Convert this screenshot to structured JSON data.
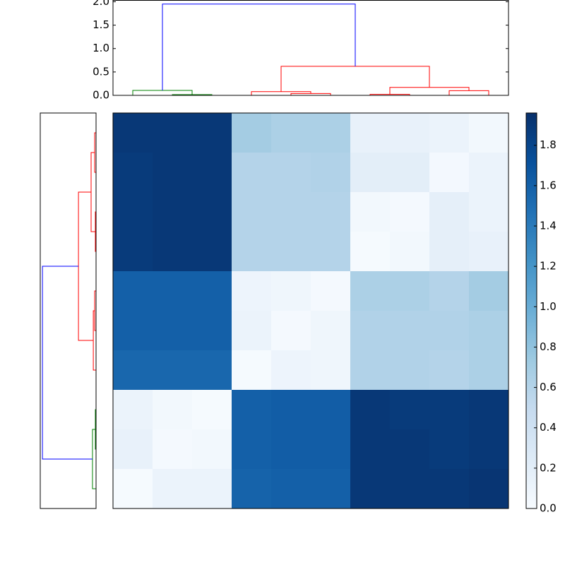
{
  "chart_data": [
    {
      "type": "dendrogram",
      "orientation": "top",
      "xlim": [
        0,
        100
      ],
      "ylim": [
        0,
        2.03
      ],
      "yticks": [
        {
          "value": 0,
          "label": "0.0"
        },
        {
          "value": 0.5,
          "label": "0.5"
        },
        {
          "value": 1,
          "label": "1.0"
        },
        {
          "value": 1.5,
          "label": "1.5"
        },
        {
          "value": 2,
          "label": "2.0"
        }
      ],
      "links": [
        {
          "icoord": [
            15,
            15,
            25,
            25
          ],
          "dcoord": [
            0,
            0.015,
            0.015,
            0
          ],
          "color": "#008000"
        },
        {
          "icoord": [
            5,
            5,
            20,
            20
          ],
          "dcoord": [
            0,
            0.106,
            0.106,
            0.015
          ],
          "color": "#008000"
        },
        {
          "icoord": [
            45,
            45,
            55,
            55
          ],
          "dcoord": [
            0,
            0.04,
            0.04,
            0
          ],
          "color": "#ff0000"
        },
        {
          "icoord": [
            35,
            35,
            50,
            50
          ],
          "dcoord": [
            0,
            0.08,
            0.08,
            0.04
          ],
          "color": "#ff0000"
        },
        {
          "icoord": [
            65,
            65,
            75,
            75
          ],
          "dcoord": [
            0,
            0.02,
            0.02,
            0
          ],
          "color": "#ff0000"
        },
        {
          "icoord": [
            85,
            85,
            95,
            95
          ],
          "dcoord": [
            0,
            0.1,
            0.1,
            0
          ],
          "color": "#ff0000"
        },
        {
          "icoord": [
            70,
            70,
            90,
            90
          ],
          "dcoord": [
            0.02,
            0.17,
            0.17,
            0.1
          ],
          "color": "#ff0000"
        },
        {
          "icoord": [
            42.5,
            42.5,
            80,
            80
          ],
          "dcoord": [
            0.08,
            0.62,
            0.62,
            0.17
          ],
          "color": "#ff0000"
        },
        {
          "icoord": [
            12.5,
            12.5,
            61.25,
            61.25
          ],
          "dcoord": [
            0.106,
            1.95,
            1.95,
            0.62
          ],
          "color": "#0000ff"
        }
      ]
    },
    {
      "type": "dendrogram",
      "orientation": "left",
      "xlim": [
        0,
        2.03
      ],
      "ylim": [
        0,
        100
      ],
      "links": [
        {
          "icoord": [
            15,
            15,
            25,
            25
          ],
          "dcoord": [
            0,
            0.026,
            0.026,
            0
          ],
          "color": "#008000"
        },
        {
          "icoord": [
            5,
            5,
            20,
            20
          ],
          "dcoord": [
            0,
            0.13,
            0.13,
            0.026
          ],
          "color": "#008000"
        },
        {
          "icoord": [
            45,
            45,
            55,
            55
          ],
          "dcoord": [
            0,
            0.05,
            0.05,
            0
          ],
          "color": "#ff0000"
        },
        {
          "icoord": [
            35,
            35,
            50,
            50
          ],
          "dcoord": [
            0,
            0.1,
            0.1,
            0.05
          ],
          "color": "#ff0000"
        },
        {
          "icoord": [
            65,
            65,
            75,
            75
          ],
          "dcoord": [
            0,
            0.026,
            0.026,
            0
          ],
          "color": "#ff0000"
        },
        {
          "icoord": [
            85,
            85,
            95,
            95
          ],
          "dcoord": [
            0,
            0.05,
            0.05,
            0
          ],
          "color": "#ff0000"
        },
        {
          "icoord": [
            70,
            70,
            90,
            90
          ],
          "dcoord": [
            0.026,
            0.18,
            0.18,
            0.05
          ],
          "color": "#ff0000"
        },
        {
          "icoord": [
            42.5,
            42.5,
            80,
            80
          ],
          "dcoord": [
            0.1,
            0.64,
            0.64,
            0.18
          ],
          "color": "#ff0000"
        },
        {
          "icoord": [
            12.5,
            12.5,
            61.25,
            61.25
          ],
          "dcoord": [
            0.13,
            1.95,
            1.95,
            0.64
          ],
          "color": "#0000ff"
        }
      ]
    },
    {
      "type": "heatmap",
      "colormap": "Blues",
      "clim": [
        0,
        1.96
      ],
      "colorbar_ticks": [
        {
          "value": 0,
          "label": "0.0"
        },
        {
          "value": 0.2,
          "label": "0.2"
        },
        {
          "value": 0.4,
          "label": "0.4"
        },
        {
          "value": 0.6,
          "label": "0.6"
        },
        {
          "value": 0.8,
          "label": "0.8"
        },
        {
          "value": 1,
          "label": "1.0"
        },
        {
          "value": 1.2,
          "label": "1.2"
        },
        {
          "value": 1.4,
          "label": "1.4"
        },
        {
          "value": 1.6,
          "label": "1.6"
        },
        {
          "value": 1.8,
          "label": "1.8"
        }
      ],
      "z": [
        [
          1.9,
          1.9,
          1.9,
          0.7,
          0.65,
          0.65,
          0.15,
          0.15,
          0.12,
          0.05
        ],
        [
          1.88,
          1.9,
          1.9,
          0.6,
          0.6,
          0.62,
          0.2,
          0.2,
          0.04,
          0.12
        ],
        [
          1.88,
          1.9,
          1.9,
          0.6,
          0.6,
          0.6,
          0.05,
          0.03,
          0.18,
          0.12
        ],
        [
          1.88,
          1.9,
          1.9,
          0.6,
          0.6,
          0.6,
          0.02,
          0.05,
          0.18,
          0.15
        ],
        [
          1.6,
          1.6,
          1.6,
          0.1,
          0.08,
          0.03,
          0.65,
          0.65,
          0.6,
          0.7
        ],
        [
          1.6,
          1.6,
          1.6,
          0.12,
          0.03,
          0.08,
          0.62,
          0.62,
          0.62,
          0.65
        ],
        [
          1.55,
          1.55,
          1.55,
          0.02,
          0.1,
          0.08,
          0.62,
          0.62,
          0.6,
          0.65
        ],
        [
          0.12,
          0.05,
          0.02,
          1.6,
          1.62,
          1.62,
          1.9,
          1.88,
          1.88,
          1.9
        ],
        [
          0.15,
          0.03,
          0.05,
          1.6,
          1.62,
          1.62,
          1.9,
          1.9,
          1.88,
          1.9
        ],
        [
          0.02,
          0.12,
          0.12,
          1.58,
          1.6,
          1.6,
          1.9,
          1.9,
          1.9,
          1.92
        ]
      ]
    }
  ]
}
